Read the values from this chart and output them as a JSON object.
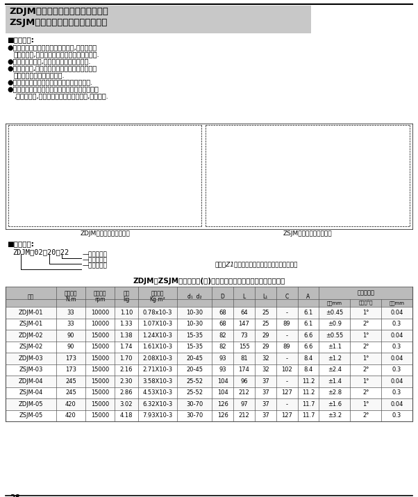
{
  "title1": "ZDJM型带锥套单型弹性膜片联轴器",
  "title2": "ZSJM型带锥套双型弹性膜片联轴器",
  "features_title": "■主要特点:",
  "features": [
    "●采用优良的不锈锄片做为弹性材料,联轴器具有高扭转刚性,更加适应自动控制传动的快速应答.",
    "●没有背隙、迟滞,可以进行高精度重复定位.",
    "●低惯性设计,对于正反运转、制动等都可以淥满尽数地发挥其优异的耐久性.",
    "●最适合于数控机器的进给轴主轴用的联轴器.",
    "●本联轴器比胀套联结弹性膜片联轴器转动惯量小,同等外径下,适用轴孔更大、装拆更方便,价格更低."
  ],
  "label_left": "ZDJM型带锥套单型联轴器",
  "label_right": "ZSJM型带锥套双型联轴器",
  "marking_title": "■标记示例:",
  "marking_example": "ZDJM－02－20－22",
  "label_congdong": "—从动端轴径",
  "label_zhudong": "—主动端轴径",
  "label_xinghaojigui": "—型号及规格",
  "replace_text": "替代带Z1型胀套的弹性膜片联轴器的最佳选择排",
  "table_title": "ZDJM、ZSJM型带锥套单(双)型弹性膜片联轴器基本参数和主要尺寸",
  "col_h1": [
    "型号",
    "公称扭矩\nN.m",
    "许用转速\nrpm",
    "重量\nkg",
    "转动惯量\nKg.m²",
    "d₁  d₂",
    "D",
    "L",
    "L₁",
    "C",
    "A"
  ],
  "col_h2": [
    "轴向mm",
    "角向（°）",
    "径向mm"
  ],
  "col_hspan": "许用补偿量",
  "table_data": [
    [
      "ZDJM-01",
      "33",
      "10000",
      "1.10",
      "0.78x10-3",
      "10-30",
      "68",
      "64",
      "25",
      "-",
      "6.1",
      "±0.45",
      "1°",
      "0.04"
    ],
    [
      "ZSJM-01",
      "33",
      "10000",
      "1.33",
      "1.07X10-3",
      "10-30",
      "68",
      "147",
      "25",
      "89",
      "6.1",
      "±0.9",
      "2°",
      "0.3"
    ],
    [
      "ZDJM-02",
      "90",
      "15000",
      "1.38",
      "1.24X10-3",
      "15-35",
      "82",
      "73",
      "29",
      "-",
      "6.6",
      "±0.55",
      "1°",
      "0.04"
    ],
    [
      "ZSJM-02",
      "90",
      "15000",
      "1.74",
      "1.61X10-3",
      "15-35",
      "82",
      "155",
      "29",
      "89",
      "6.6",
      "±1.1",
      "2°",
      "0.3"
    ],
    [
      "ZDJM-03",
      "173",
      "15000",
      "1.70",
      "2.08X10-3",
      "20-45",
      "93",
      "81",
      "32",
      "-",
      "8.4",
      "±1.2",
      "1°",
      "0.04"
    ],
    [
      "ZSJM-03",
      "173",
      "15000",
      "2.16",
      "2.71X10-3",
      "20-45",
      "93",
      "174",
      "32",
      "102",
      "8.4",
      "±2.4",
      "2°",
      "0.3"
    ],
    [
      "ZDJM-04",
      "245",
      "15000",
      "2.30",
      "3.58X10-3",
      "25-52",
      "104",
      "96",
      "37",
      "-",
      "11.2",
      "±1.4",
      "1°",
      "0.04"
    ],
    [
      "ZSJM-04",
      "245",
      "15000",
      "2.86",
      "4.53X10-3",
      "25-52",
      "104",
      "212",
      "37",
      "127",
      "11.2",
      "±2.8",
      "2°",
      "0.3"
    ],
    [
      "ZDJM-05",
      "420",
      "15000",
      "3.02",
      "6.32X10-3",
      "30-70",
      "126",
      "97",
      "37",
      "-",
      "11.7",
      "±1.6",
      "1°",
      "0.04"
    ],
    [
      "ZSJM-05",
      "420",
      "15000",
      "4.18",
      "7.93X10-3",
      "30-70",
      "126",
      "212",
      "37",
      "127",
      "11.7",
      "±3.2",
      "2°",
      "0.3"
    ]
  ],
  "page_num": "28",
  "bg_color": "#ffffff",
  "title_bg": "#c8c8c8",
  "table_line_color": "#555555",
  "header_bg": "#bbbbbb"
}
